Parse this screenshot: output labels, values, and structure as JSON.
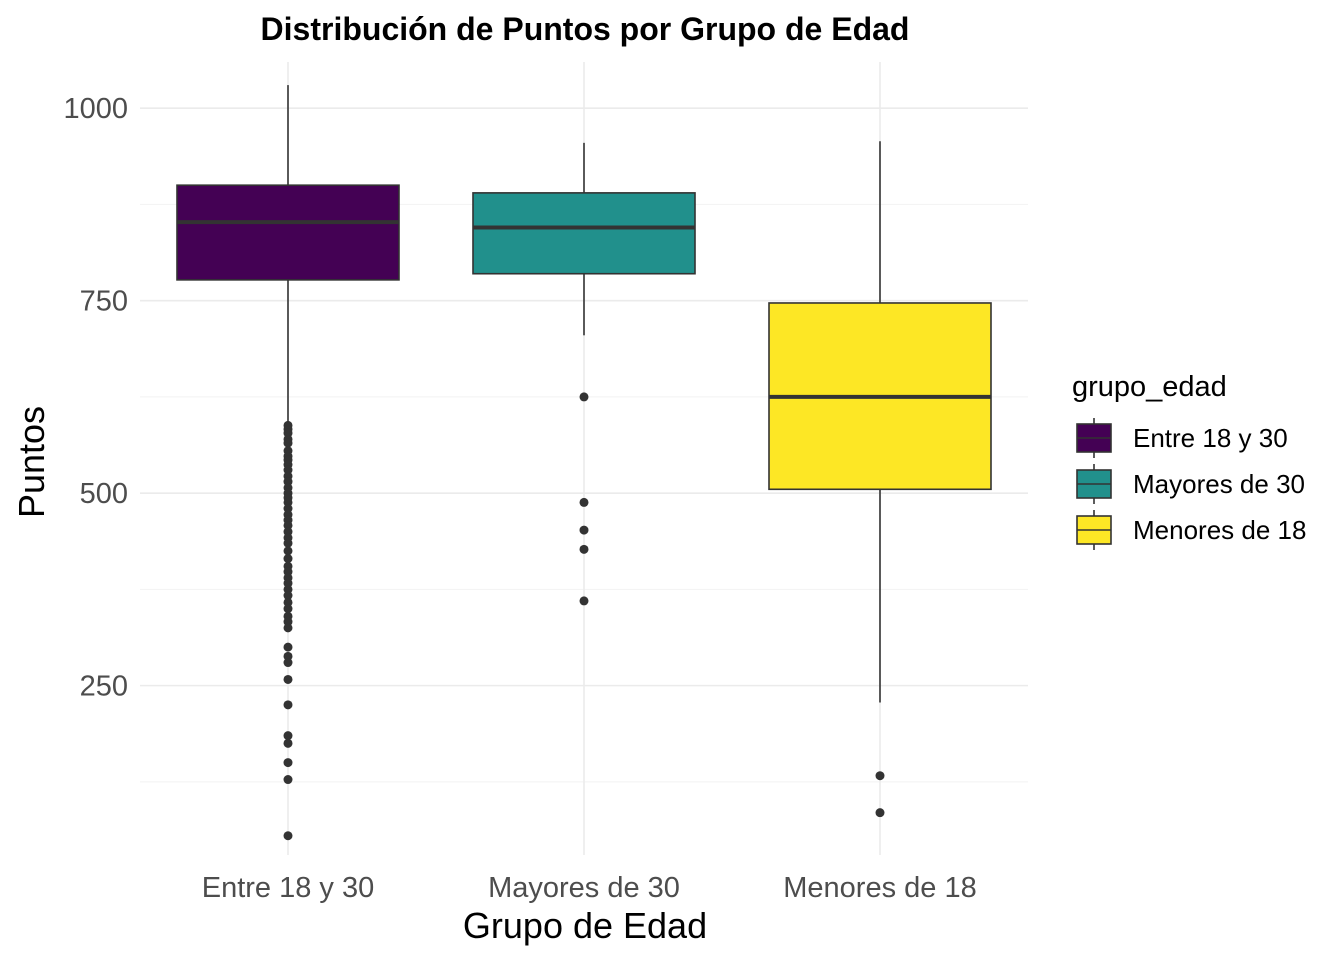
{
  "chart_data": {
    "type": "boxplot",
    "title": "Distribución de Puntos por Grupo de Edad",
    "xlabel": "Grupo de Edad",
    "ylabel": "Puntos",
    "ylim": [
      30,
      1060
    ],
    "yticks": [
      250,
      500,
      750,
      1000
    ],
    "grid": true,
    "legend": {
      "title": "grupo_edad",
      "placement": "right",
      "entries": [
        "Entre 18 y 30",
        "Mayores de 30",
        "Menores de 18"
      ]
    },
    "categories": [
      "Entre 18 y 30",
      "Mayores de 30",
      "Menores de 18"
    ],
    "series": [
      {
        "name": "Entre 18 y 30",
        "color": "#440154",
        "whisker_low": 590,
        "q1": 777,
        "median": 852,
        "q3": 900,
        "whisker_high": 1030,
        "outliers": [
          588,
          583,
          578,
          570,
          565,
          555,
          548,
          543,
          537,
          530,
          522,
          515,
          507,
          500,
          494,
          488,
          480,
          472,
          465,
          458,
          450,
          442,
          435,
          425,
          415,
          405,
          398,
          390,
          383,
          375,
          367,
          358,
          350,
          340,
          333,
          325,
          300,
          288,
          280,
          258,
          225,
          185,
          175,
          150,
          128,
          55
        ]
      },
      {
        "name": "Mayores de 30",
        "color": "#21908c",
        "whisker_low": 705,
        "q1": 785,
        "median": 845,
        "q3": 890,
        "whisker_high": 955,
        "outliers": [
          625,
          488,
          452,
          427,
          360
        ]
      },
      {
        "name": "Menores de 18",
        "color": "#fde725",
        "whisker_low": 228,
        "q1": 505,
        "median": 625,
        "q3": 747,
        "whisker_high": 957,
        "outliers": [
          133,
          85
        ]
      }
    ]
  }
}
